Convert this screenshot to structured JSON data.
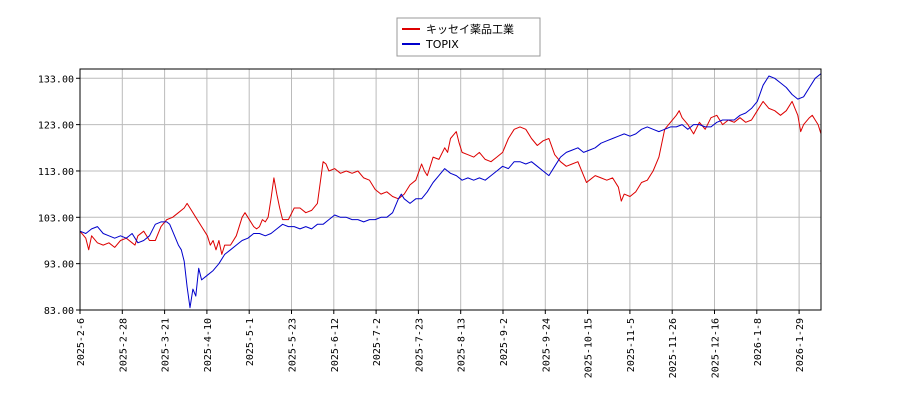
{
  "chart_data": {
    "type": "line",
    "title": "",
    "xlabel": "",
    "ylabel": "",
    "ylim": [
      83,
      135
    ],
    "yticks": [
      "133.00",
      "123.00",
      "113.00",
      "103.00",
      "93.00",
      "83.00"
    ],
    "xticks": [
      "2025-2-6",
      "2025-2-28",
      "2025-3-21",
      "2025-4-10",
      "2025-5-1",
      "2025-5-23",
      "2025-6-12",
      "2025-7-2",
      "2025-7-23",
      "2025-8-13",
      "2025-9-2",
      "2025-9-24",
      "2025-10-15",
      "2025-11-5",
      "2025-11-26",
      "2025-12-16",
      "2026-1-8",
      "2026-1-29"
    ],
    "grid": true,
    "legend_position": "top-center",
    "series": [
      {
        "name": "キッセイ薬品工業",
        "color": "#dd0000",
        "points": [
          [
            0,
            100
          ],
          [
            2,
            98.5
          ],
          [
            3,
            96
          ],
          [
            4,
            99
          ],
          [
            6,
            97.5
          ],
          [
            8,
            97
          ],
          [
            10,
            97.5
          ],
          [
            12,
            96.5
          ],
          [
            14,
            98
          ],
          [
            16,
            98.5
          ],
          [
            18,
            97.5
          ],
          [
            19,
            97
          ],
          [
            20,
            99
          ],
          [
            22,
            100
          ],
          [
            24,
            98
          ],
          [
            26,
            98
          ],
          [
            28,
            101
          ],
          [
            30,
            102.5
          ],
          [
            32,
            103
          ],
          [
            34,
            104
          ],
          [
            36,
            105
          ],
          [
            37,
            106
          ],
          [
            38,
            105
          ],
          [
            40,
            103
          ],
          [
            42,
            101
          ],
          [
            44,
            99
          ],
          [
            45,
            97
          ],
          [
            46,
            98
          ],
          [
            47,
            96
          ],
          [
            48,
            98
          ],
          [
            49,
            95
          ],
          [
            50,
            97
          ],
          [
            52,
            97
          ],
          [
            54,
            99
          ],
          [
            56,
            103
          ],
          [
            57,
            104
          ],
          [
            58,
            103
          ],
          [
            60,
            101
          ],
          [
            61,
            100.5
          ],
          [
            62,
            101
          ],
          [
            63,
            102.5
          ],
          [
            64,
            102
          ],
          [
            65,
            103
          ],
          [
            66,
            107
          ],
          [
            67,
            111.5
          ],
          [
            68,
            108
          ],
          [
            69,
            105
          ],
          [
            70,
            102.5
          ],
          [
            72,
            102.5
          ],
          [
            74,
            105
          ],
          [
            76,
            105
          ],
          [
            78,
            104
          ],
          [
            80,
            104.5
          ],
          [
            82,
            106
          ],
          [
            84,
            115
          ],
          [
            85,
            114.5
          ],
          [
            86,
            113
          ],
          [
            88,
            113.5
          ],
          [
            90,
            112.5
          ],
          [
            92,
            113
          ],
          [
            94,
            112.5
          ],
          [
            96,
            113
          ],
          [
            98,
            111.5
          ],
          [
            100,
            111
          ],
          [
            102,
            109
          ],
          [
            104,
            108
          ],
          [
            106,
            108.5
          ],
          [
            108,
            107.5
          ],
          [
            110,
            107
          ],
          [
            112,
            108
          ],
          [
            114,
            110
          ],
          [
            116,
            111
          ],
          [
            118,
            114.5
          ],
          [
            119,
            113
          ],
          [
            120,
            112
          ],
          [
            122,
            116
          ],
          [
            124,
            115.5
          ],
          [
            126,
            118
          ],
          [
            127,
            117
          ],
          [
            128,
            120
          ],
          [
            130,
            121.5
          ],
          [
            131,
            119
          ],
          [
            132,
            117
          ],
          [
            134,
            116.5
          ],
          [
            136,
            116
          ],
          [
            138,
            117
          ],
          [
            140,
            115.5
          ],
          [
            142,
            115
          ],
          [
            144,
            116
          ],
          [
            146,
            117
          ],
          [
            148,
            120
          ],
          [
            150,
            122
          ],
          [
            152,
            122.5
          ],
          [
            154,
            122
          ],
          [
            156,
            120
          ],
          [
            158,
            118.5
          ],
          [
            160,
            119.5
          ],
          [
            162,
            120
          ],
          [
            164,
            116.5
          ],
          [
            166,
            115
          ],
          [
            168,
            114
          ],
          [
            170,
            114.5
          ],
          [
            172,
            115
          ],
          [
            174,
            112
          ],
          [
            175,
            110.5
          ],
          [
            176,
            111
          ],
          [
            178,
            112
          ],
          [
            180,
            111.5
          ],
          [
            182,
            111
          ],
          [
            184,
            111.5
          ],
          [
            186,
            109.5
          ],
          [
            187,
            106.5
          ],
          [
            188,
            108
          ],
          [
            190,
            107.5
          ],
          [
            192,
            108.5
          ],
          [
            194,
            110.5
          ],
          [
            196,
            111
          ],
          [
            198,
            113
          ],
          [
            200,
            116
          ],
          [
            202,
            122
          ],
          [
            204,
            123.5
          ],
          [
            206,
            125
          ],
          [
            207,
            126
          ],
          [
            208,
            124.5
          ],
          [
            210,
            123
          ],
          [
            212,
            121
          ],
          [
            214,
            123.5
          ],
          [
            216,
            122
          ],
          [
            218,
            124.5
          ],
          [
            220,
            125
          ],
          [
            222,
            123
          ],
          [
            224,
            124
          ],
          [
            226,
            123.5
          ],
          [
            228,
            124.5
          ],
          [
            230,
            123.5
          ],
          [
            232,
            124
          ],
          [
            234,
            126
          ],
          [
            236,
            128
          ],
          [
            238,
            126.5
          ],
          [
            240,
            126
          ],
          [
            242,
            125
          ],
          [
            244,
            126
          ],
          [
            246,
            128
          ],
          [
            248,
            125
          ],
          [
            249,
            121.5
          ],
          [
            250,
            123
          ],
          [
            252,
            124.5
          ],
          [
            253,
            125
          ],
          [
            254,
            124
          ],
          [
            255,
            123
          ],
          [
            256,
            121
          ]
        ]
      },
      {
        "name": "TOPIX",
        "color": "#0000cc",
        "points": [
          [
            0,
            100
          ],
          [
            2,
            99.5
          ],
          [
            4,
            100.5
          ],
          [
            6,
            101
          ],
          [
            8,
            99.5
          ],
          [
            10,
            99
          ],
          [
            12,
            98.5
          ],
          [
            14,
            99
          ],
          [
            16,
            98.5
          ],
          [
            18,
            99.5
          ],
          [
            20,
            97.5
          ],
          [
            22,
            98
          ],
          [
            24,
            99
          ],
          [
            26,
            101.5
          ],
          [
            28,
            102
          ],
          [
            30,
            102
          ],
          [
            31,
            101.5
          ],
          [
            32,
            100
          ],
          [
            34,
            97
          ],
          [
            35,
            96
          ],
          [
            36,
            93.5
          ],
          [
            37,
            88
          ],
          [
            38,
            83.5
          ],
          [
            39,
            87.5
          ],
          [
            40,
            86
          ],
          [
            41,
            92
          ],
          [
            42,
            89.5
          ],
          [
            44,
            90.5
          ],
          [
            46,
            91.5
          ],
          [
            48,
            93
          ],
          [
            50,
            95
          ],
          [
            52,
            96
          ],
          [
            54,
            97
          ],
          [
            56,
            98
          ],
          [
            58,
            98.5
          ],
          [
            60,
            99.5
          ],
          [
            62,
            99.5
          ],
          [
            64,
            99
          ],
          [
            66,
            99.5
          ],
          [
            68,
            100.5
          ],
          [
            70,
            101.5
          ],
          [
            72,
            101
          ],
          [
            74,
            101
          ],
          [
            76,
            100.5
          ],
          [
            78,
            101
          ],
          [
            80,
            100.5
          ],
          [
            82,
            101.5
          ],
          [
            84,
            101.5
          ],
          [
            86,
            102.5
          ],
          [
            88,
            103.5
          ],
          [
            90,
            103
          ],
          [
            92,
            103
          ],
          [
            94,
            102.5
          ],
          [
            96,
            102.5
          ],
          [
            98,
            102
          ],
          [
            100,
            102.5
          ],
          [
            102,
            102.5
          ],
          [
            104,
            103
          ],
          [
            106,
            103
          ],
          [
            108,
            104
          ],
          [
            110,
            107
          ],
          [
            111,
            108
          ],
          [
            112,
            107
          ],
          [
            114,
            106
          ],
          [
            116,
            107
          ],
          [
            118,
            107
          ],
          [
            120,
            108.5
          ],
          [
            122,
            110.5
          ],
          [
            124,
            112
          ],
          [
            126,
            113.5
          ],
          [
            128,
            112.5
          ],
          [
            130,
            112
          ],
          [
            132,
            111
          ],
          [
            134,
            111.5
          ],
          [
            136,
            111
          ],
          [
            138,
            111.5
          ],
          [
            140,
            111
          ],
          [
            142,
            112
          ],
          [
            144,
            113
          ],
          [
            146,
            114
          ],
          [
            148,
            113.5
          ],
          [
            150,
            115
          ],
          [
            152,
            115
          ],
          [
            154,
            114.5
          ],
          [
            156,
            115
          ],
          [
            158,
            114
          ],
          [
            160,
            113
          ],
          [
            162,
            112
          ],
          [
            164,
            114
          ],
          [
            166,
            116
          ],
          [
            168,
            117
          ],
          [
            170,
            117.5
          ],
          [
            172,
            118
          ],
          [
            174,
            117
          ],
          [
            176,
            117.5
          ],
          [
            178,
            118
          ],
          [
            180,
            119
          ],
          [
            182,
            119.5
          ],
          [
            184,
            120
          ],
          [
            186,
            120.5
          ],
          [
            188,
            121
          ],
          [
            190,
            120.5
          ],
          [
            192,
            121
          ],
          [
            194,
            122
          ],
          [
            196,
            122.5
          ],
          [
            198,
            122
          ],
          [
            200,
            121.5
          ],
          [
            202,
            122
          ],
          [
            204,
            122.5
          ],
          [
            206,
            122.5
          ],
          [
            208,
            123
          ],
          [
            210,
            122
          ],
          [
            212,
            123
          ],
          [
            214,
            123
          ],
          [
            216,
            122.5
          ],
          [
            218,
            122.5
          ],
          [
            220,
            123.5
          ],
          [
            222,
            124
          ],
          [
            224,
            124
          ],
          [
            226,
            124
          ],
          [
            228,
            125
          ],
          [
            230,
            125.5
          ],
          [
            232,
            126.5
          ],
          [
            234,
            128
          ],
          [
            236,
            131.5
          ],
          [
            238,
            133.5
          ],
          [
            240,
            133
          ],
          [
            242,
            132
          ],
          [
            244,
            131
          ],
          [
            246,
            129.5
          ],
          [
            248,
            128.5
          ],
          [
            250,
            129
          ],
          [
            252,
            131
          ],
          [
            254,
            133
          ],
          [
            256,
            134
          ]
        ]
      }
    ]
  }
}
